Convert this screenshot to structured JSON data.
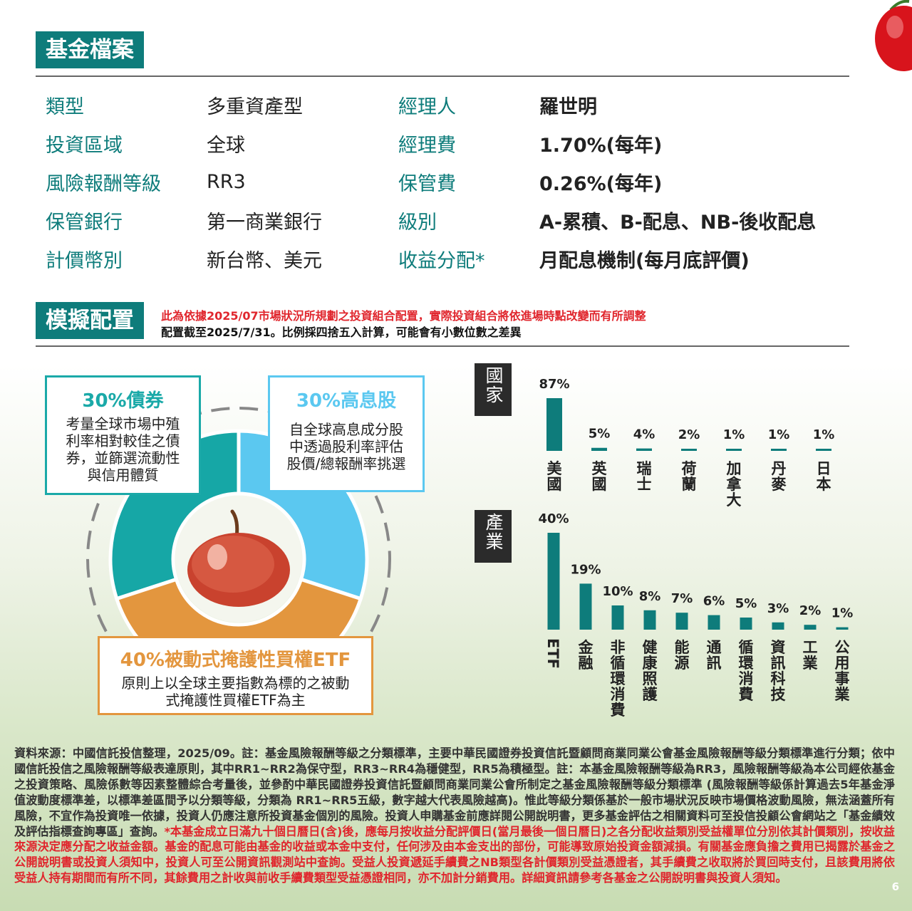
{
  "profile": {
    "title": "基金檔案",
    "rows": [
      {
        "label1": "類型",
        "value1": "多重資產型",
        "label2": "經理人",
        "value2": "羅世明"
      },
      {
        "label1": "投資區域",
        "value1": "全球",
        "label2": "經理費",
        "value2": "1.70%(每年)"
      },
      {
        "label1": "風險報酬等級",
        "value1": "RR3",
        "label2": "保管費",
        "value2": "0.26%(每年)"
      },
      {
        "label1": "保管銀行",
        "value1": "第一商業銀行",
        "label2": "級別",
        "value2": "A-累積、B-配息、NB-後收配息"
      },
      {
        "label1": "計價幣別",
        "value1": "新台幣、美元",
        "label2": "收益分配*",
        "value2": "月配息機制(每月底評價)"
      }
    ]
  },
  "allocation": {
    "title": "模擬配置",
    "note_red": "此為依據2025/07市場狀況所規劃之投資組合配置，實際投資組合將依進場時點改變而有所調整",
    "note_black": "配置截至2025/7/31。比例採四捨五入計算，可能會有小數位數之差異",
    "boxes": {
      "bond": {
        "title": "30%債券",
        "desc": [
          "考量全球市場中殖",
          "利率相對較佳之債",
          "券，並篩選流動性",
          "與信用體質"
        ],
        "color": "#1aa9a8"
      },
      "dividend": {
        "title": "30%高息股",
        "desc": [
          "自全球高息成分股",
          "中透過股利率評估",
          "股價/總報酬率挑選"
        ],
        "color": "#5bc8f0"
      },
      "etf": {
        "title": "40%被動式掩護性買權ETF",
        "desc": [
          "原則上以全球主要指數為標的之被動",
          "式掩護性買權ETF為主"
        ],
        "color": "#e3963e"
      }
    }
  },
  "colors": {
    "teal": "#0e7c7b",
    "red": "#e0262d",
    "bond": "#16a7a6",
    "dividend": "#5bc8f0",
    "etf": "#e3963e"
  },
  "chart_data": [
    {
      "type": "pie",
      "categories": [
        "債券",
        "高息股",
        "被動式掩護性買權ETF"
      ],
      "values": [
        30,
        30,
        40
      ]
    },
    {
      "type": "bar",
      "tag": "國家",
      "categories": [
        "美國",
        "英國",
        "瑞士",
        "荷蘭",
        "加拿大",
        "丹麥",
        "日本"
      ],
      "values": [
        87,
        5,
        4,
        2,
        1,
        1,
        1
      ],
      "labels": [
        "87%",
        "5%",
        "4%",
        "2%",
        "1%",
        "1%",
        "1%"
      ]
    },
    {
      "type": "bar",
      "tag": "產業",
      "categories": [
        "ETF",
        "金融",
        "非循環消費",
        "健康照護",
        "能源",
        "通訊",
        "循環消費",
        "資訊科技",
        "工業",
        "公用事業"
      ],
      "values": [
        40,
        19,
        10,
        8,
        7,
        6,
        5,
        3,
        2,
        1
      ],
      "labels": [
        "40%",
        "19%",
        "10%",
        "8%",
        "7%",
        "6%",
        "5%",
        "3%",
        "2%",
        "1%"
      ]
    }
  ],
  "footer": {
    "main": "資料來源：中國信託投信整理，2025/09。註：基金風險報酬等級之分類標準，主要中華民國證券投資信託暨顧問商業同業公會基金風險報酬等級分類標準進行分類；依中國信託投信之風險報酬等級表達原則，其中RR1~RR2為保守型，RR3~RR4為穩健型，RR5為積極型。註：本基金風險報酬等級為RR3，風險報酬等級為本公司經依基金之投資策略、風險係數等因素整體綜合考量後，並參酌中華民國證券投資信託暨顧問商業同業公會所制定之基金風險報酬等級分類標準 (風險報酬等級係計算過去5年基金淨值波動度標準差，以標準差區間予以分類等級，分類為 RR1~RR5五級，數字越大代表風險越高)。惟此等級分類係基於一般市場狀況反映市場價格波動風險，無法涵蓋所有風險，不宜作為投資唯一依據，投資人仍應注意所投資基金個別的風險。投資人申購基金前應詳閱公開說明書，更多基金評估之相關資料可至投信投顧公會網站之「基金績效及評估指標查詢專區」查詢。",
    "red": "*本基金成立日滿九十個日曆日(含)後，應每月按收益分配評價日(當月最後一個日曆日)之各分配收益類別受益權單位分別依其計價類別，按收益來源決定應分配之收益金額。基金的配息可能由基金的收益或本金中支付，任何涉及由本金支出的部份，可能導致原始投資金額減損。有關基金應負擔之費用已揭露於基金之公開說明書或投資人須知中，投資人可至公開資訊觀測站中查詢。受益人投資遞延手續費之NB類型各計價類別受益憑證者，其手續費之收取將於買回時支付，且該費用將依受益人持有期間而有所不同，其餘費用之計收與前收手續費類型受益憑證相同，亦不加計分銷費用。詳細資訊請參考各基金之公開說明書與投資人須知。",
    "page": "6"
  }
}
